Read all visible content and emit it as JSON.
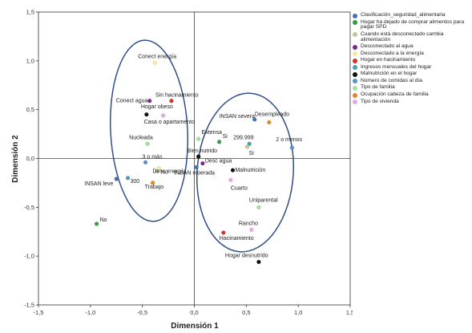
{
  "chart_data": {
    "type": "scatter",
    "xlabel": "Dimensión 1",
    "ylabel": "Dimensión 2",
    "xlim": [
      -1.5,
      1.5
    ],
    "ylim": [
      -1.5,
      1.5
    ],
    "xticks": [
      "-1,5",
      "-1,0",
      "-0,5",
      "0,0",
      "0,5",
      "1,0",
      "1,5"
    ],
    "yticks": [
      "1,5",
      "1,0",
      "0,5",
      "0,0",
      "-0,5",
      "-1,0",
      "-1,5"
    ],
    "legend_position": "right",
    "legend": [
      {
        "name": "Clasificación_seguridad_alimentaria",
        "color": "#4a6fb5"
      },
      {
        "name": "Hogar ha dejado de comprar alimentos para pagar SPD",
        "color": "#3a9a48"
      },
      {
        "name": "Cuando está desconectado cambia alimentación",
        "color": "#c8c49a"
      },
      {
        "name": "Desconectado al agua",
        "color": "#7b2a8a"
      },
      {
        "name": "Desconectado a la energía",
        "color": "#f3e9a0"
      },
      {
        "name": "Hogar en hacinamiento",
        "color": "#d63030"
      },
      {
        "name": "Ingresos mensuales del hogar",
        "color": "#4aa0b5"
      },
      {
        "name": "Malnutrición en el hogar",
        "color": "#111111"
      },
      {
        "name": "Número de comidas al día",
        "color": "#5d8fd0"
      },
      {
        "name": "Tipo de familia",
        "color": "#a0e0a0"
      },
      {
        "name": "Ocupación cabeza de familia",
        "color": "#e08a25"
      },
      {
        "name": "Tipo de vivienda",
        "color": "#e8a8e0"
      }
    ],
    "points": [
      {
        "label": "Conect energía",
        "x": -0.38,
        "y": 0.98,
        "color": "#f3e9a0"
      },
      {
        "label": "Sin hacinamiento",
        "x": -0.22,
        "y": 0.59,
        "color": "#d63030"
      },
      {
        "label": "Conect agua",
        "x": -0.43,
        "y": 0.59,
        "color": "#7b2a8a"
      },
      {
        "label": "Hogar obeso",
        "x": -0.46,
        "y": 0.45,
        "color": "#111111"
      },
      {
        "label": "Casa o apartamento",
        "x": -0.3,
        "y": 0.44,
        "color": "#e8a8e0"
      },
      {
        "label": "Nucleada",
        "x": -0.45,
        "y": 0.15,
        "color": "#a0e0a0"
      },
      {
        "label": "3 o más",
        "x": -0.47,
        "y": -0.04,
        "color": "#5d8fd0"
      },
      {
        "label": "No",
        "x": -0.36,
        "y": -0.13,
        "color": "#c8c49a"
      },
      {
        "label": "Desc energía",
        "x": -0.34,
        "y": -0.1,
        "color": "#f3e9a0"
      },
      {
        "label": "INSAN leve",
        "x": -0.75,
        "y": -0.21,
        "color": "#4a6fb5"
      },
      {
        "label": "300",
        "x": -0.64,
        "y": -0.2,
        "color": "#4aa0b5"
      },
      {
        "label": "Trabajo",
        "x": -0.4,
        "y": -0.25,
        "color": "#e08a25"
      },
      {
        "label": "No",
        "x": -0.94,
        "y": -0.67,
        "color": "#3a9a48"
      },
      {
        "label": "Extensa",
        "x": 0.04,
        "y": 0.2,
        "color": "#a0e0a0"
      },
      {
        "label": "Bien nutrido",
        "x": 0.04,
        "y": 0.02,
        "color": "#111111"
      },
      {
        "label": "Desc agua",
        "x": 0.08,
        "y": -0.05,
        "color": "#7b2a8a"
      },
      {
        "label": "INSAN moerada",
        "x": 0.02,
        "y": -0.09,
        "color": "#4a6fb5"
      },
      {
        "label": "Si",
        "x": 0.24,
        "y": 0.17,
        "color": "#3a9a48"
      },
      {
        "label": "INSAN severa",
        "x": 0.58,
        "y": 0.4,
        "color": "#4a6fb5"
      },
      {
        "label": "Desempleado",
        "x": 0.72,
        "y": 0.37,
        "color": "#e08a25"
      },
      {
        "label": "299.999",
        "x": 0.53,
        "y": 0.15,
        "color": "#4aa0b5"
      },
      {
        "label": "Si",
        "x": 0.51,
        "y": 0.12,
        "color": "#c8c49a"
      },
      {
        "label": "2 o menos",
        "x": 0.94,
        "y": 0.11,
        "color": "#5d8fd0"
      },
      {
        "label": "Malnutrición",
        "x": 0.37,
        "y": -0.12,
        "color": "#111111"
      },
      {
        "label": "Cuarto",
        "x": 0.35,
        "y": -0.22,
        "color": "#e8a8e0"
      },
      {
        "label": "Uniparental",
        "x": 0.62,
        "y": -0.5,
        "color": "#a0e0a0"
      },
      {
        "label": "Rancho",
        "x": 0.55,
        "y": -0.73,
        "color": "#e8a8e0"
      },
      {
        "label": "Hacinamiento",
        "x": 0.28,
        "y": -0.76,
        "color": "#d63030"
      },
      {
        "label": "Hogar desnutrido",
        "x": 0.62,
        "y": -1.06,
        "color": "#111111"
      }
    ]
  }
}
